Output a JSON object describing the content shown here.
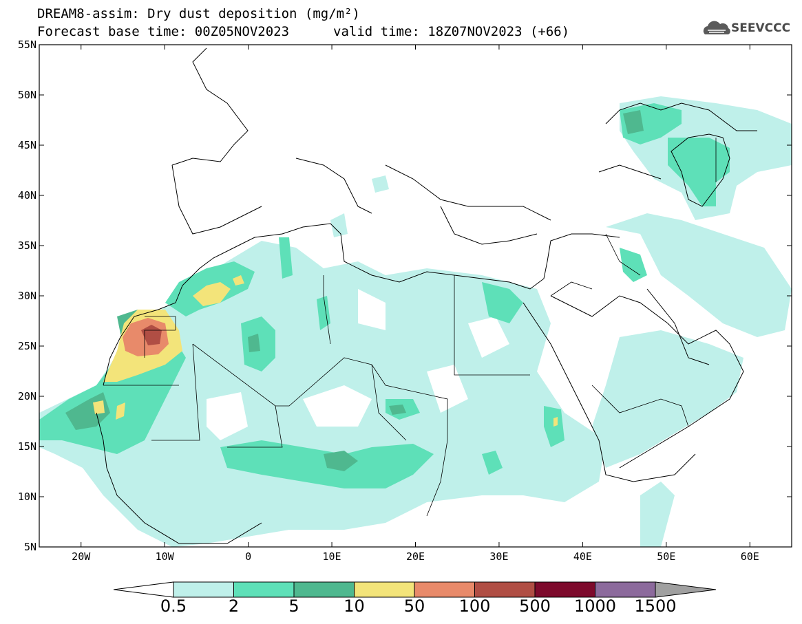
{
  "header": {
    "title_line1": "DREAM8-assim: Dry dust deposition (mg/m²)",
    "title_line2": "Forecast base time: 00Z05NOV2023",
    "valid_time": "valid time: 18Z07NOV2023 (+66)",
    "logo_text": "SEEVCCC"
  },
  "map": {
    "lon_range": [
      -25,
      65
    ],
    "lat_range": [
      5,
      55
    ],
    "lat_ticks": [
      "55N",
      "50N",
      "45N",
      "40N",
      "35N",
      "30N",
      "25N",
      "20N",
      "15N",
      "10N",
      "5N"
    ],
    "lon_ticks": [
      "20W",
      "10W",
      "0",
      "10E",
      "20E",
      "30E",
      "40E",
      "50E",
      "60E"
    ],
    "lon_tick_values": [
      -20,
      -10,
      0,
      10,
      20,
      30,
      40,
      50,
      60
    ],
    "lat_tick_values": [
      55,
      50,
      45,
      40,
      35,
      30,
      25,
      20,
      15,
      10,
      5
    ]
  },
  "legend": {
    "labels": [
      "0.5",
      "2",
      "5",
      "10",
      "50",
      "100",
      "500",
      "1000",
      "1500"
    ],
    "colors": [
      "#bff0ea",
      "#5ee0b8",
      "#4fb88f",
      "#f3e47a",
      "#e88a6a",
      "#b04e44",
      "#7d0a2c",
      "#8c6a9c"
    ],
    "under_color": "#ffffff",
    "over_color": "#a0a0a0"
  }
}
